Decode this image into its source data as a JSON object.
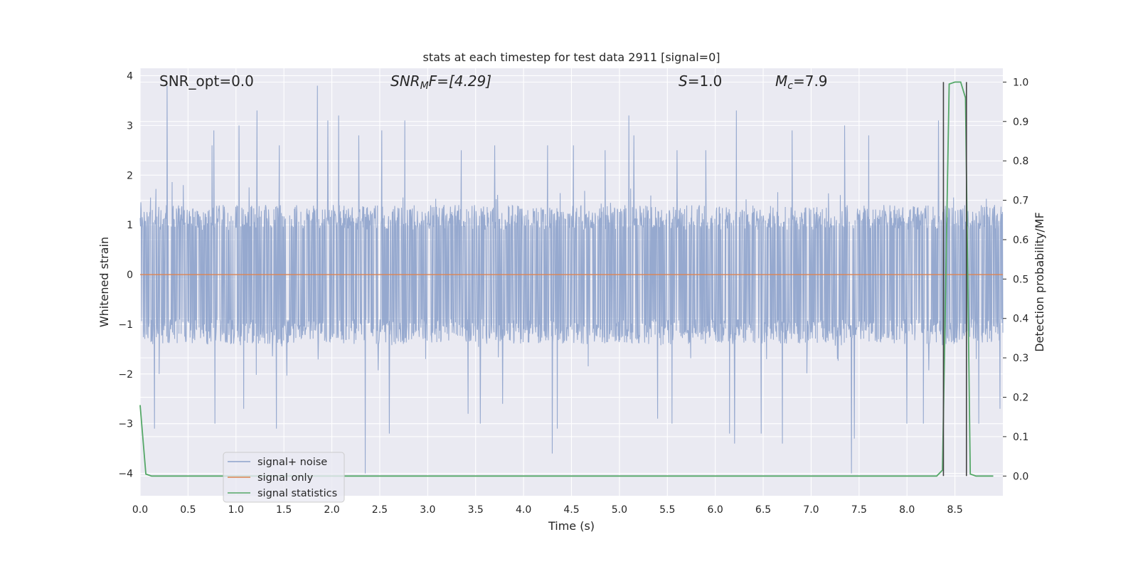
{
  "chart_data": {
    "type": "line",
    "title": "stats at each timestep for test data 2911 [signal=0]",
    "xlabel": "Time (s)",
    "ylabel_left": "Whitened strain",
    "ylabel_right": "Detection probability/MF",
    "xlim": [
      0.0,
      9.0
    ],
    "ylim_left": [
      -4.45,
      4.15
    ],
    "ylim_right": [
      -0.05,
      1.035
    ],
    "x_ticks": [
      "0.0",
      "0.5",
      "1.0",
      "1.5",
      "2.0",
      "2.5",
      "3.0",
      "3.5",
      "4.0",
      "4.5",
      "5.0",
      "5.5",
      "6.0",
      "6.5",
      "7.0",
      "7.5",
      "8.0",
      "8.5"
    ],
    "y_ticks_left": [
      "4",
      "3",
      "2",
      "1",
      "0",
      "−1",
      "−2",
      "−3",
      "−4"
    ],
    "y_ticks_right": [
      "1.0",
      "0.9",
      "0.8",
      "0.7",
      "0.6",
      "0.5",
      "0.4",
      "0.3",
      "0.2",
      "0.1",
      "0.0"
    ],
    "grid": true,
    "legend_position": "lower-left",
    "annotations": {
      "snr_opt": "SNR_opt=0.0",
      "snr_mf_label": "SNR",
      "snr_mf_sub": "M",
      "snr_mf_rest": "F=[4.29]",
      "s_label": "S",
      "s_value": "=1.0",
      "mc_label": "M",
      "mc_sub": "c",
      "mc_value": "=7.9"
    },
    "series": [
      {
        "name": "signal+ noise",
        "color": "#8da2cb",
        "axis": "left",
        "description_level": "noise band approximately ±1.4 with spikes up to ~3.8 and down to ~-4.0",
        "spikes": [
          [
            0.28,
            3.8
          ],
          [
            0.45,
            1.8
          ],
          [
            0.75,
            2.6
          ],
          [
            0.77,
            2.9
          ],
          [
            1.03,
            3.0
          ],
          [
            1.22,
            3.3
          ],
          [
            1.45,
            2.6
          ],
          [
            1.85,
            3.8
          ],
          [
            1.96,
            3.1
          ],
          [
            2.07,
            3.2
          ],
          [
            2.28,
            2.8
          ],
          [
            2.52,
            2.9
          ],
          [
            2.76,
            3.1
          ],
          [
            3.35,
            2.5
          ],
          [
            3.7,
            2.6
          ],
          [
            4.25,
            2.6
          ],
          [
            4.52,
            2.6
          ],
          [
            4.85,
            2.5
          ],
          [
            5.1,
            3.2
          ],
          [
            5.15,
            2.8
          ],
          [
            5.6,
            2.5
          ],
          [
            5.9,
            2.5
          ],
          [
            6.22,
            3.3
          ],
          [
            6.48,
            2.7
          ],
          [
            6.8,
            2.9
          ],
          [
            7.35,
            3.0
          ],
          [
            7.6,
            2.8
          ],
          [
            8.0,
            2.8
          ],
          [
            8.33,
            3.1
          ],
          [
            0.15,
            -3.1
          ],
          [
            0.2,
            -2.0
          ],
          [
            0.78,
            -3.0
          ],
          [
            1.08,
            -2.7
          ],
          [
            1.42,
            -3.1
          ],
          [
            2.35,
            -4.0
          ],
          [
            2.6,
            -3.2
          ],
          [
            3.42,
            -2.8
          ],
          [
            3.55,
            -3.0
          ],
          [
            3.78,
            -2.6
          ],
          [
            4.3,
            -3.6
          ],
          [
            4.35,
            -3.1
          ],
          [
            5.4,
            -2.9
          ],
          [
            5.55,
            -3.0
          ],
          [
            6.15,
            -3.2
          ],
          [
            6.2,
            -3.4
          ],
          [
            6.48,
            -3.2
          ],
          [
            6.7,
            -3.4
          ],
          [
            7.42,
            -4.0
          ],
          [
            7.45,
            -3.3
          ],
          [
            8.0,
            -3.0
          ],
          [
            8.17,
            -3.0
          ],
          [
            8.75,
            -3.0
          ],
          [
            8.97,
            -2.7
          ]
        ]
      },
      {
        "name": "signal only",
        "color": "#dd8452",
        "axis": "left",
        "points": [
          [
            0.0,
            0.0
          ],
          [
            9.0,
            0.0
          ]
        ]
      },
      {
        "name": "signal statistics",
        "color": "#55a868",
        "axis": "right",
        "points": [
          [
            0.0,
            0.18
          ],
          [
            0.06,
            0.005
          ],
          [
            0.12,
            0.0
          ],
          [
            0.5,
            0.0
          ],
          [
            1.0,
            0.0
          ],
          [
            2.0,
            0.0
          ],
          [
            3.0,
            0.0
          ],
          [
            4.0,
            0.0
          ],
          [
            5.0,
            0.0
          ],
          [
            6.0,
            0.0
          ],
          [
            7.0,
            0.0
          ],
          [
            8.0,
            0.0
          ],
          [
            8.31,
            0.0
          ],
          [
            8.37,
            0.015
          ],
          [
            8.44,
            0.995
          ],
          [
            8.5,
            1.0
          ],
          [
            8.56,
            1.0
          ],
          [
            8.61,
            0.96
          ],
          [
            8.66,
            0.005
          ],
          [
            8.72,
            0.0
          ],
          [
            8.9,
            0.0
          ]
        ]
      }
    ],
    "vertical_markers": [
      8.38,
      8.62
    ],
    "marker_color": "#444444"
  }
}
